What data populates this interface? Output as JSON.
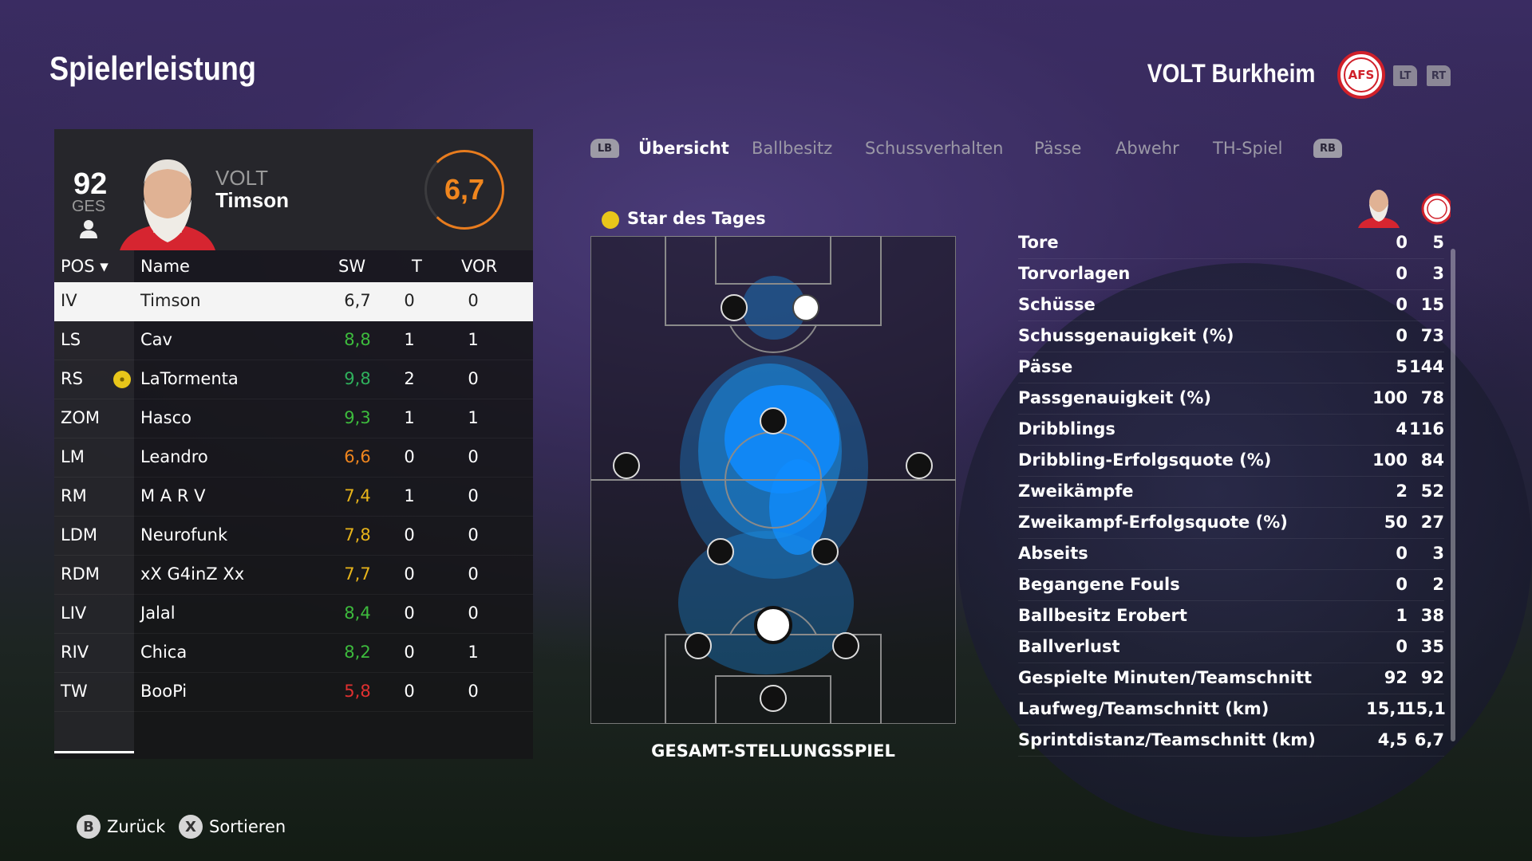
{
  "header": {
    "title": "Spielerleistung",
    "club": "VOLT Burkheim",
    "logo_text": "AFS",
    "lt": "LT",
    "rt": "RT"
  },
  "player": {
    "overall": "92",
    "overall_label": "GES",
    "club_short": "VOLT",
    "name": "Timson",
    "rating": "6,7",
    "rating_color": "#f0861e"
  },
  "table": {
    "headers": {
      "pos": "POS",
      "name": "Name",
      "sw": "SW",
      "t": "T",
      "vor": "VOR"
    },
    "rows": [
      {
        "pos": "IV",
        "name": "Timson",
        "sw": "6,7",
        "t": "0",
        "vor": "0",
        "color": "#222222",
        "selected": true
      },
      {
        "pos": "LS",
        "name": "Cav",
        "sw": "8,8",
        "t": "1",
        "vor": "1",
        "color": "#3dbb3d"
      },
      {
        "pos": "RS",
        "name": "LaTormenta",
        "sw": "9,8",
        "t": "2",
        "vor": "0",
        "color": "#2fb05c",
        "star": true
      },
      {
        "pos": "ZOM",
        "name": "Hasco",
        "sw": "9,3",
        "t": "1",
        "vor": "1",
        "color": "#3dbb3d"
      },
      {
        "pos": "LM",
        "name": "Leandro",
        "sw": "6,6",
        "t": "0",
        "vor": "0",
        "color": "#f0861e"
      },
      {
        "pos": "RM",
        "name": "M A R V",
        "sw": "7,4",
        "t": "1",
        "vor": "0",
        "color": "#e8b41a"
      },
      {
        "pos": "LDM",
        "name": "Neurofunk",
        "sw": "7,8",
        "t": "0",
        "vor": "0",
        "color": "#e8b41a"
      },
      {
        "pos": "RDM",
        "name": "xX G4inZ Xx",
        "sw": "7,7",
        "t": "0",
        "vor": "0",
        "color": "#e8b41a"
      },
      {
        "pos": "LIV",
        "name": "Jalal",
        "sw": "8,4",
        "t": "0",
        "vor": "0",
        "color": "#3dbb3d"
      },
      {
        "pos": "RIV",
        "name": "Chica",
        "sw": "8,2",
        "t": "0",
        "vor": "1",
        "color": "#3dbb3d"
      },
      {
        "pos": "TW",
        "name": "BooPi",
        "sw": "5,8",
        "t": "0",
        "vor": "0",
        "color": "#e03030"
      }
    ]
  },
  "tabs": {
    "lb": "LB",
    "rb": "RB",
    "items": [
      "Übersicht",
      "Ballbesitz",
      "Schussverhalten",
      "Pässe",
      "Abwehr",
      "TH-Spiel"
    ],
    "active": "Übersicht"
  },
  "pitch": {
    "star_label": "Star des Tages",
    "caption": "GESAMT-STELLUNGSSPIEL"
  },
  "stats": [
    {
      "label": "Tore",
      "player": "0",
      "team": "5"
    },
    {
      "label": "Torvorlagen",
      "player": "0",
      "team": "3"
    },
    {
      "label": "Schüsse",
      "player": "0",
      "team": "15"
    },
    {
      "label": "Schussgenauigkeit (%)",
      "player": "0",
      "team": "73"
    },
    {
      "label": "Pässe",
      "player": "5",
      "team": "144"
    },
    {
      "label": "Passgenauigkeit (%)",
      "player": "100",
      "team": "78"
    },
    {
      "label": "Dribblings",
      "player": "4",
      "team": "116"
    },
    {
      "label": "Dribbling-Erfolgsquote (%)",
      "player": "100",
      "team": "84"
    },
    {
      "label": "Zweikämpfe",
      "player": "2",
      "team": "52"
    },
    {
      "label": "Zweikampf-Erfolgsquote (%)",
      "player": "50",
      "team": "27"
    },
    {
      "label": "Abseits",
      "player": "0",
      "team": "3"
    },
    {
      "label": "Begangene Fouls",
      "player": "0",
      "team": "2"
    },
    {
      "label": "Ballbesitz Erobert",
      "player": "1",
      "team": "38"
    },
    {
      "label": "Ballverlust",
      "player": "0",
      "team": "35"
    },
    {
      "label": "Gespielte Minuten/Teamschnitt",
      "player": "92",
      "team": "92"
    },
    {
      "label": "Laufweg/Teamschnitt (km)",
      "player": "15,1",
      "team": "15,1"
    },
    {
      "label": "Sprintdistanz/Teamschnitt (km)",
      "player": "4,5",
      "team": "6,7"
    }
  ],
  "footer": {
    "back_btn": "B",
    "back": "Zurück",
    "sort_btn": "X",
    "sort": "Sortieren"
  }
}
